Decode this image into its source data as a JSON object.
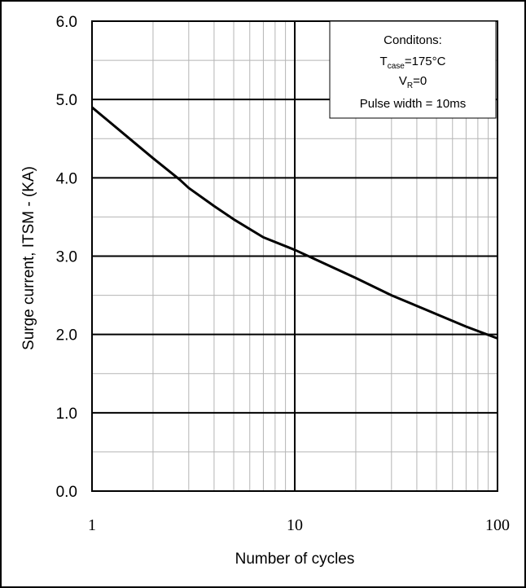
{
  "chart_data": {
    "type": "line",
    "xlabel": "Number of cycles",
    "ylabel": "Surge current, ITSM - (KA)",
    "x_scale": "log",
    "xlim": [
      1,
      100
    ],
    "ylim": [
      0,
      6
    ],
    "grid": true,
    "x_ticks": [
      "1",
      "10",
      "100"
    ],
    "y_ticks": [
      "0.0",
      "1.0",
      "2.0",
      "3.0",
      "4.0",
      "5.0",
      "6.0"
    ],
    "series": [
      {
        "x": [
          1,
          1.5,
          2,
          2.7,
          3,
          4,
          5,
          7,
          10,
          15,
          20,
          30,
          50,
          70,
          100
        ],
        "y": [
          4.9,
          4.52,
          4.25,
          3.98,
          3.87,
          3.64,
          3.47,
          3.24,
          3.08,
          2.87,
          2.72,
          2.5,
          2.26,
          2.1,
          1.95
        ]
      }
    ],
    "legend_box": {
      "title": "Conditons:",
      "line1_main": "T",
      "line1_sub": "case",
      "line1_rest": "=175°C",
      "line2_main": "V",
      "line2_sub": "R",
      "line2_rest": "=0",
      "line3": "Pulse width = 10ms",
      "placement": "top-right"
    }
  }
}
